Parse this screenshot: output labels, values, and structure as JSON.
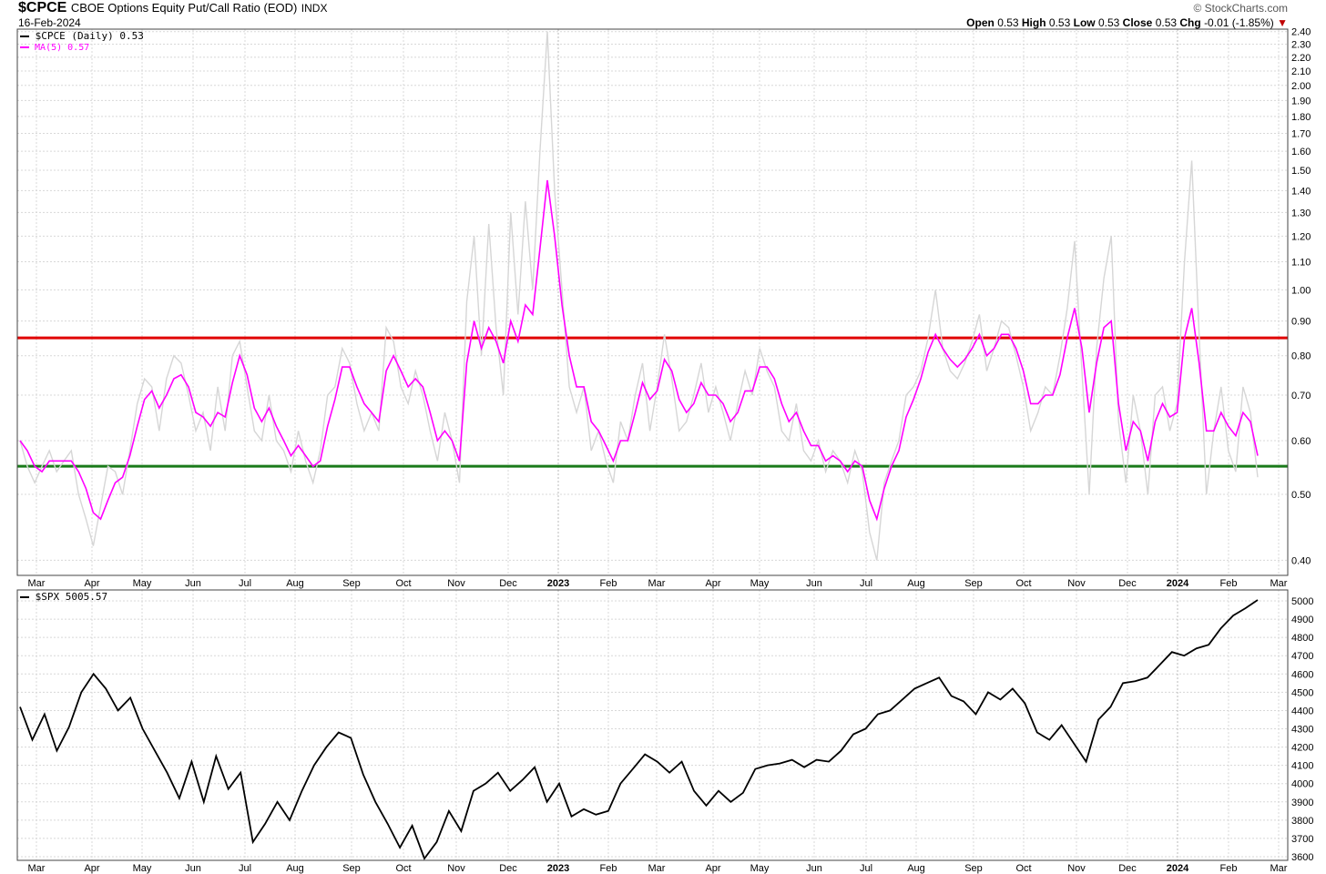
{
  "header": {
    "symbol": "$CPCE",
    "description": "CBOE Options Equity Put/Call Ratio (EOD)",
    "exchange": "INDX",
    "date": "16-Feb-2024",
    "brand": "© StockCharts.com",
    "ohlc": {
      "open_label": "Open",
      "open": "0.53",
      "high_label": "High",
      "high": "0.53",
      "low_label": "Low",
      "low": "0.53",
      "close_label": "Close",
      "close": "0.53",
      "chg_label": "Chg",
      "chg": "-0.01 (-1.85%)",
      "chg_arrow": "▼"
    }
  },
  "panels": {
    "top": {
      "legend_main": "$CPCE (Daily) 0.53",
      "legend_ma": "MA(5) 0.57"
    },
    "bottom": {
      "legend_main": "$SPX 5005.57"
    }
  },
  "colors": {
    "raw_line": "#d6d6d6",
    "ma_line": "#ff00ff",
    "red_line": "#e00000",
    "green_line": "#1a7a1a",
    "spx_line": "#000000",
    "grid": "#d8d8d8"
  },
  "chart_data": [
    {
      "type": "line",
      "title": "$CPCE CBOE Options Equity Put/Call Ratio (EOD)",
      "scale": "log",
      "ylim": [
        0.38,
        2.42
      ],
      "y_ticks": [
        "0.40",
        "0.50",
        "0.60",
        "0.70",
        "0.80",
        "0.90",
        "1.00",
        "1.10",
        "1.20",
        "1.30",
        "1.40",
        "1.50",
        "1.60",
        "1.70",
        "1.80",
        "1.90",
        "2.00",
        "2.10",
        "2.20",
        "2.30",
        "2.40"
      ],
      "x_ticks": [
        "Mar",
        "Apr",
        "May",
        "Jun",
        "Jul",
        "Aug",
        "Sep",
        "Oct",
        "Nov",
        "Dec",
        "2023",
        "Feb",
        "Mar",
        "Apr",
        "May",
        "Jun",
        "Jul",
        "Aug",
        "Sep",
        "Oct",
        "Nov",
        "Dec",
        "2024",
        "Feb",
        "Mar"
      ],
      "grid": true,
      "horizontal_lines": [
        {
          "value": 0.85,
          "color": "red"
        },
        {
          "value": 0.55,
          "color": "green"
        }
      ],
      "series": [
        {
          "name": "$CPCE (Daily)",
          "values": [
            0.6,
            0.55,
            0.52,
            0.55,
            0.58,
            0.54,
            0.56,
            0.58,
            0.5,
            0.46,
            0.42,
            0.48,
            0.55,
            0.54,
            0.5,
            0.58,
            0.68,
            0.74,
            0.72,
            0.62,
            0.74,
            0.8,
            0.78,
            0.7,
            0.62,
            0.66,
            0.58,
            0.72,
            0.62,
            0.8,
            0.84,
            0.72,
            0.62,
            0.6,
            0.7,
            0.6,
            0.58,
            0.54,
            0.62,
            0.56,
            0.52,
            0.58,
            0.7,
            0.72,
            0.82,
            0.78,
            0.68,
            0.62,
            0.66,
            0.62,
            0.88,
            0.84,
            0.72,
            0.68,
            0.76,
            0.7,
            0.62,
            0.56,
            0.66,
            0.6,
            0.52,
            0.96,
            1.2,
            0.8,
            1.25,
            0.88,
            0.7,
            1.3,
            0.92,
            1.35,
            1.0,
            1.6,
            2.4,
            1.4,
            1.0,
            0.72,
            0.66,
            0.72,
            0.58,
            0.62,
            0.56,
            0.52,
            0.64,
            0.6,
            0.7,
            0.78,
            0.62,
            0.72,
            0.86,
            0.74,
            0.62,
            0.64,
            0.7,
            0.78,
            0.66,
            0.72,
            0.66,
            0.6,
            0.68,
            0.76,
            0.7,
            0.82,
            0.76,
            0.72,
            0.62,
            0.6,
            0.68,
            0.58,
            0.56,
            0.6,
            0.54,
            0.58,
            0.56,
            0.52,
            0.58,
            0.54,
            0.44,
            0.4,
            0.52,
            0.56,
            0.6,
            0.7,
            0.72,
            0.76,
            0.85,
            1.0,
            0.82,
            0.76,
            0.74,
            0.78,
            0.84,
            0.92,
            0.76,
            0.82,
            0.9,
            0.88,
            0.8,
            0.72,
            0.62,
            0.66,
            0.72,
            0.7,
            0.8,
            0.94,
            1.18,
            0.76,
            0.5,
            0.82,
            1.04,
            1.2,
            0.64,
            0.52,
            0.7,
            0.62,
            0.5,
            0.7,
            0.72,
            0.62,
            0.68,
            1.1,
            1.55,
            0.86,
            0.5,
            0.62,
            0.72,
            0.58,
            0.54,
            0.72,
            0.66,
            0.53
          ]
        },
        {
          "name": "MA(5)",
          "values": [
            0.6,
            0.58,
            0.55,
            0.54,
            0.56,
            0.56,
            0.56,
            0.56,
            0.54,
            0.51,
            0.47,
            0.46,
            0.49,
            0.52,
            0.53,
            0.57,
            0.63,
            0.69,
            0.71,
            0.67,
            0.7,
            0.74,
            0.75,
            0.72,
            0.66,
            0.65,
            0.63,
            0.66,
            0.65,
            0.73,
            0.8,
            0.75,
            0.67,
            0.64,
            0.67,
            0.63,
            0.6,
            0.57,
            0.59,
            0.57,
            0.55,
            0.56,
            0.63,
            0.69,
            0.77,
            0.77,
            0.72,
            0.68,
            0.66,
            0.64,
            0.76,
            0.8,
            0.76,
            0.72,
            0.74,
            0.72,
            0.66,
            0.6,
            0.62,
            0.6,
            0.56,
            0.78,
            0.9,
            0.82,
            0.88,
            0.84,
            0.78,
            0.9,
            0.84,
            0.95,
            0.92,
            1.15,
            1.45,
            1.2,
            0.95,
            0.8,
            0.72,
            0.72,
            0.64,
            0.62,
            0.59,
            0.56,
            0.6,
            0.6,
            0.66,
            0.73,
            0.69,
            0.71,
            0.79,
            0.76,
            0.69,
            0.66,
            0.68,
            0.73,
            0.7,
            0.7,
            0.68,
            0.64,
            0.66,
            0.71,
            0.71,
            0.77,
            0.77,
            0.74,
            0.68,
            0.64,
            0.66,
            0.62,
            0.59,
            0.59,
            0.56,
            0.57,
            0.56,
            0.54,
            0.56,
            0.55,
            0.49,
            0.46,
            0.51,
            0.55,
            0.58,
            0.65,
            0.69,
            0.74,
            0.81,
            0.86,
            0.82,
            0.79,
            0.77,
            0.79,
            0.82,
            0.86,
            0.8,
            0.82,
            0.86,
            0.86,
            0.82,
            0.76,
            0.68,
            0.68,
            0.7,
            0.7,
            0.75,
            0.85,
            0.94,
            0.82,
            0.66,
            0.78,
            0.88,
            0.9,
            0.68,
            0.58,
            0.64,
            0.62,
            0.56,
            0.64,
            0.68,
            0.65,
            0.66,
            0.85,
            0.94,
            0.78,
            0.62,
            0.62,
            0.66,
            0.63,
            0.61,
            0.66,
            0.64,
            0.57
          ]
        }
      ]
    },
    {
      "type": "line",
      "title": "$SPX",
      "ylim": [
        3580,
        5060
      ],
      "y_ticks": [
        "3600",
        "3700",
        "3800",
        "3900",
        "4000",
        "4100",
        "4200",
        "4300",
        "4400",
        "4500",
        "4600",
        "4700",
        "4800",
        "4900",
        "5000"
      ],
      "x_ticks": [
        "Mar",
        "Apr",
        "May",
        "Jun",
        "Jul",
        "Aug",
        "Sep",
        "Oct",
        "Nov",
        "Dec",
        "2023",
        "Feb",
        "Mar",
        "Apr",
        "May",
        "Jun",
        "Jul",
        "Aug",
        "Sep",
        "Oct",
        "Nov",
        "Dec",
        "2024",
        "Feb",
        "Mar"
      ],
      "grid": true,
      "series": [
        {
          "name": "$SPX",
          "values": [
            4420,
            4240,
            4380,
            4180,
            4310,
            4500,
            4600,
            4520,
            4400,
            4470,
            4300,
            4180,
            4060,
            3920,
            4120,
            3900,
            4150,
            3970,
            4060,
            3680,
            3780,
            3900,
            3800,
            3960,
            4100,
            4200,
            4280,
            4250,
            4050,
            3900,
            3780,
            3650,
            3770,
            3590,
            3680,
            3850,
            3740,
            3960,
            4000,
            4060,
            3960,
            4020,
            4090,
            3900,
            4000,
            3820,
            3860,
            3830,
            3850,
            4000,
            4080,
            4160,
            4120,
            4060,
            4120,
            3960,
            3880,
            3960,
            3900,
            3950,
            4080,
            4100,
            4110,
            4130,
            4090,
            4130,
            4120,
            4180,
            4270,
            4300,
            4380,
            4400,
            4460,
            4520,
            4550,
            4580,
            4480,
            4450,
            4380,
            4500,
            4460,
            4520,
            4440,
            4280,
            4240,
            4320,
            4220,
            4120,
            4350,
            4420,
            4550,
            4560,
            4580,
            4650,
            4720,
            4700,
            4740,
            4760,
            4850,
            4920,
            4960,
            5005
          ]
        }
      ]
    }
  ]
}
